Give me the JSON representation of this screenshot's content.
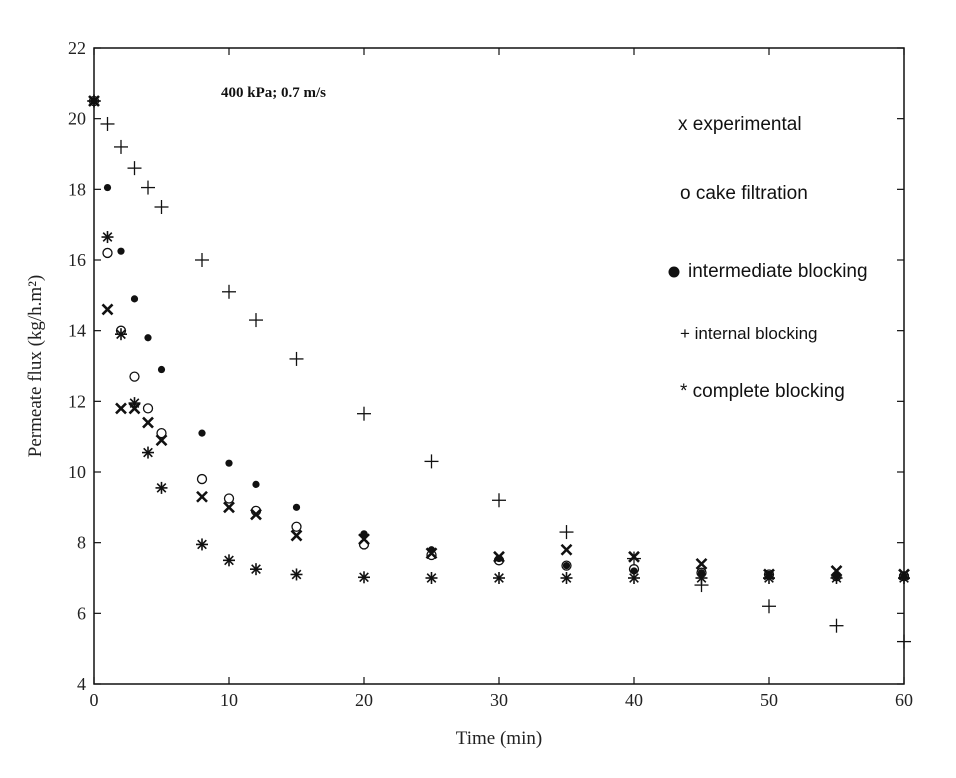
{
  "chart_data": {
    "type": "scatter",
    "title": "",
    "xlabel": "Time (min)",
    "ylabel": "Permeate flux (kg/h.m²)",
    "xlim": [
      0,
      60
    ],
    "ylim": [
      4,
      22
    ],
    "xticks": [
      0,
      10,
      20,
      30,
      40,
      50,
      60
    ],
    "yticks": [
      4,
      6,
      8,
      10,
      12,
      14,
      16,
      18,
      20,
      22
    ],
    "grid": false,
    "annotation": "400 kPa; 0.7 m/s",
    "legend_position": "right",
    "series": [
      {
        "name": "x experimental",
        "marker": "x",
        "points": [
          [
            0,
            20.5
          ],
          [
            1,
            14.6
          ],
          [
            2,
            11.8
          ],
          [
            3,
            11.8
          ],
          [
            4,
            11.4
          ],
          [
            5,
            10.9
          ],
          [
            8,
            9.3
          ],
          [
            10,
            9.0
          ],
          [
            12,
            8.8
          ],
          [
            15,
            8.2
          ],
          [
            20,
            8.1
          ],
          [
            25,
            7.7
          ],
          [
            30,
            7.6
          ],
          [
            35,
            7.8
          ],
          [
            40,
            7.6
          ],
          [
            45,
            7.4
          ],
          [
            50,
            7.1
          ],
          [
            55,
            7.2
          ],
          [
            60,
            7.1
          ]
        ]
      },
      {
        "name": "o cake filtration",
        "marker": "circle-open",
        "points": [
          [
            0,
            20.5
          ],
          [
            1,
            16.2
          ],
          [
            2,
            14.0
          ],
          [
            3,
            12.7
          ],
          [
            4,
            11.8
          ],
          [
            5,
            11.1
          ],
          [
            8,
            9.8
          ],
          [
            10,
            9.25
          ],
          [
            12,
            8.9
          ],
          [
            15,
            8.45
          ],
          [
            20,
            7.95
          ],
          [
            25,
            7.65
          ],
          [
            30,
            7.5
          ],
          [
            35,
            7.35
          ],
          [
            40,
            7.25
          ],
          [
            45,
            7.15
          ],
          [
            50,
            7.1
          ],
          [
            55,
            7.05
          ],
          [
            60,
            7.05
          ]
        ]
      },
      {
        "name": "intermediate blocking",
        "marker": "circle-filled",
        "points": [
          [
            0,
            20.5
          ],
          [
            1,
            18.05
          ],
          [
            2,
            16.25
          ],
          [
            3,
            14.9
          ],
          [
            4,
            13.8
          ],
          [
            5,
            12.9
          ],
          [
            8,
            11.1
          ],
          [
            10,
            10.25
          ],
          [
            12,
            9.65
          ],
          [
            15,
            9.0
          ],
          [
            20,
            8.25
          ],
          [
            25,
            7.8
          ],
          [
            30,
            7.55
          ],
          [
            35,
            7.35
          ],
          [
            40,
            7.2
          ],
          [
            45,
            7.15
          ],
          [
            50,
            7.1
          ],
          [
            55,
            7.05
          ],
          [
            60,
            7.05
          ]
        ]
      },
      {
        "name": "+ internal blocking",
        "marker": "plus",
        "points": [
          [
            0,
            20.5
          ],
          [
            1,
            19.85
          ],
          [
            2,
            19.2
          ],
          [
            3,
            18.6
          ],
          [
            4,
            18.05
          ],
          [
            5,
            17.5
          ],
          [
            8,
            16.0
          ],
          [
            10,
            15.1
          ],
          [
            12,
            14.3
          ],
          [
            15,
            13.2
          ],
          [
            20,
            11.65
          ],
          [
            25,
            10.3
          ],
          [
            30,
            9.2
          ],
          [
            35,
            8.3
          ],
          [
            40,
            7.55
          ],
          [
            45,
            6.8
          ],
          [
            50,
            6.2
          ],
          [
            55,
            5.65
          ],
          [
            60,
            5.2
          ]
        ]
      },
      {
        "name": "* complete blocking",
        "marker": "asterisk",
        "points": [
          [
            0,
            20.5
          ],
          [
            1,
            16.65
          ],
          [
            2,
            13.9
          ],
          [
            3,
            11.95
          ],
          [
            4,
            10.55
          ],
          [
            5,
            9.55
          ],
          [
            8,
            7.95
          ],
          [
            10,
            7.5
          ],
          [
            12,
            7.25
          ],
          [
            15,
            7.1
          ],
          [
            20,
            7.02
          ],
          [
            25,
            7.0
          ],
          [
            30,
            7.0
          ],
          [
            35,
            7.0
          ],
          [
            40,
            7.0
          ],
          [
            45,
            7.0
          ],
          [
            50,
            7.0
          ],
          [
            55,
            7.0
          ],
          [
            60,
            7.0
          ]
        ]
      }
    ]
  }
}
